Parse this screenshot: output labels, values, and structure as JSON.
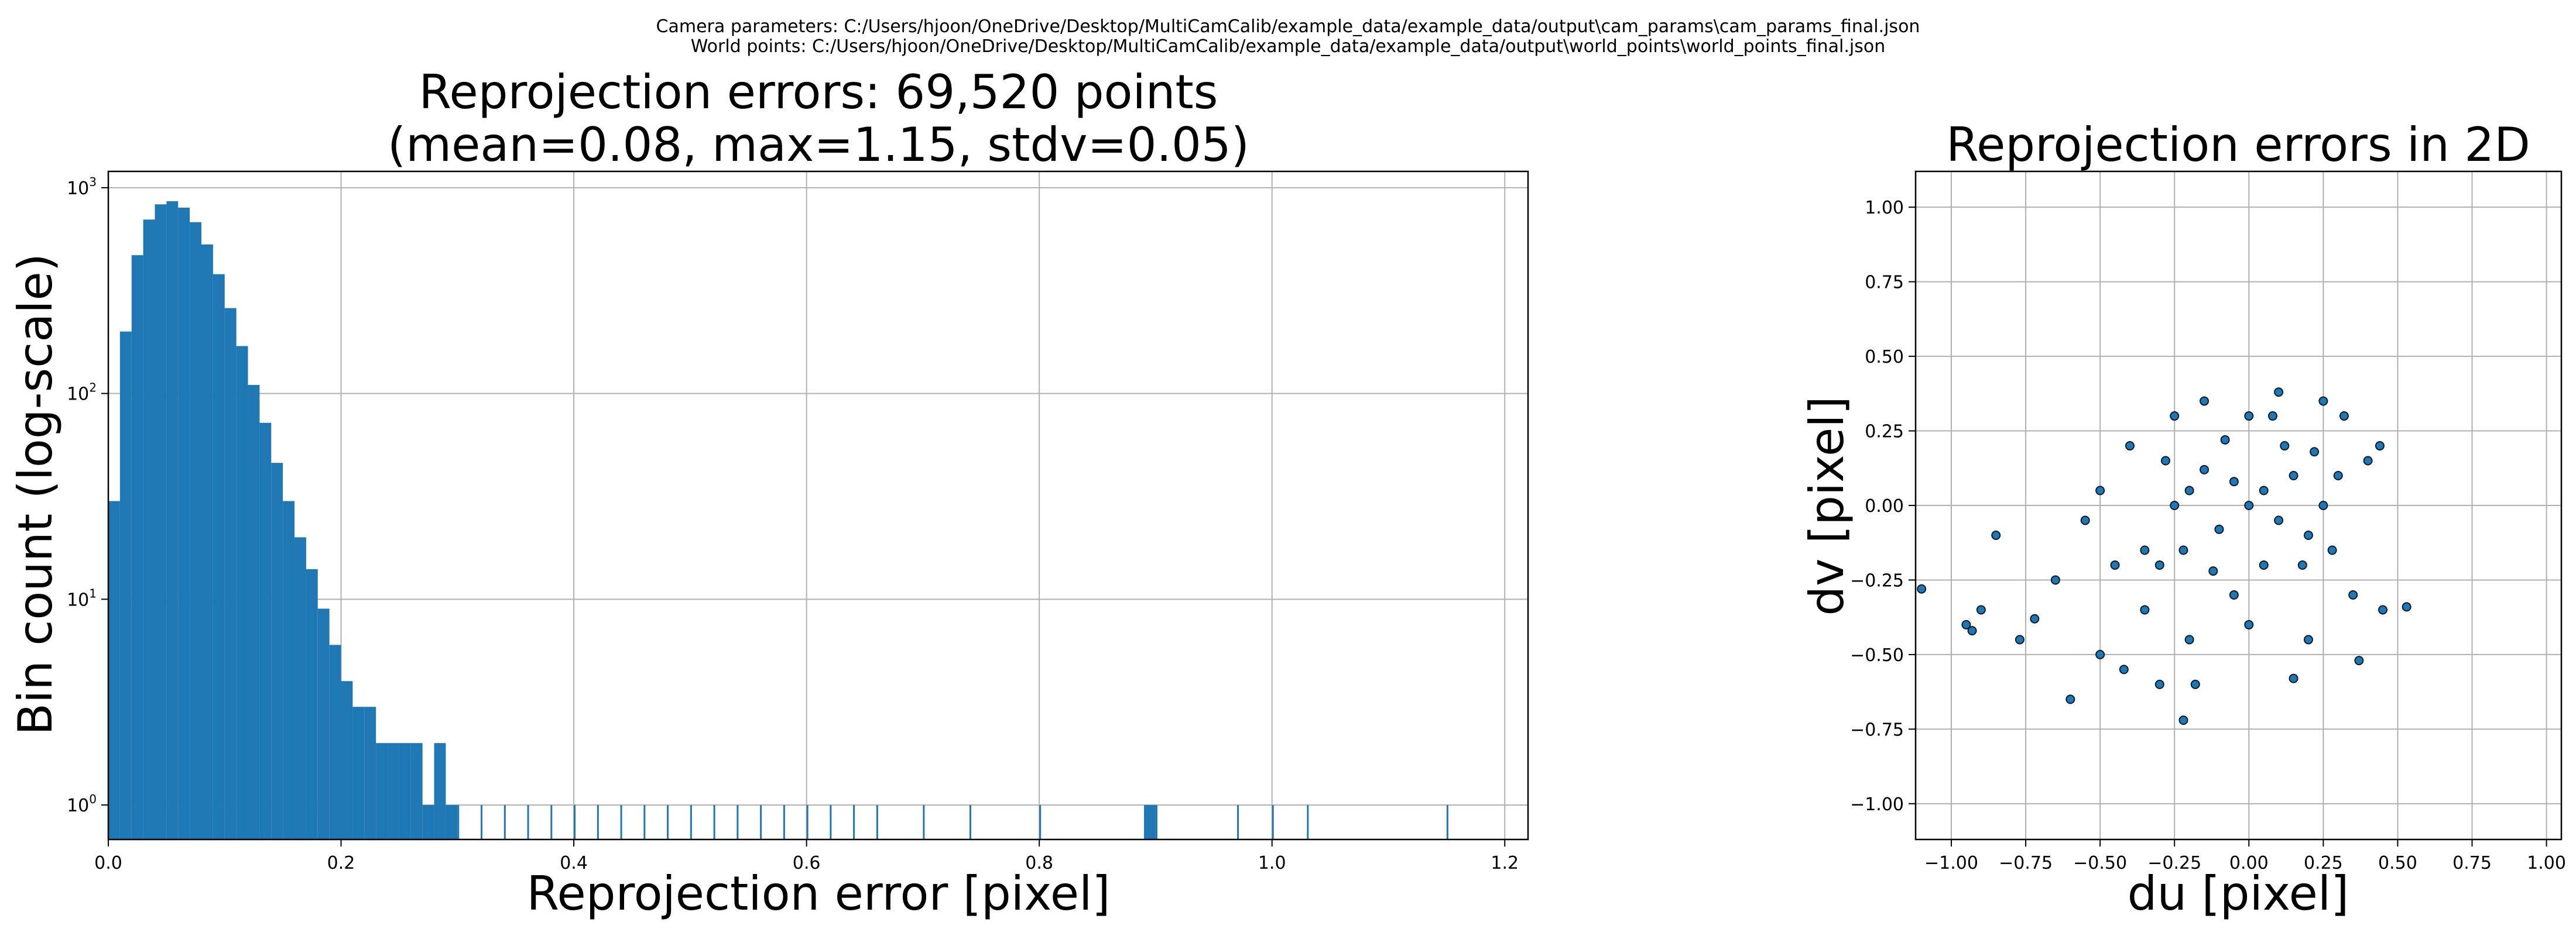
{
  "header": {
    "camera_params": "Camera parameters: C:/Users/hjoon/OneDrive/Desktop/MultiCamCalib/example_data/example_data/output\\cam_params\\cam_params_final.json",
    "world_points": "World points: C:/Users/hjoon/OneDrive/Desktop/MultiCamCalib/example_data/example_data/output\\world_points\\world_points_final.json"
  },
  "colors": {
    "bar": "#1f77b4",
    "scatter_fill": "#1f77b4",
    "scatter_edge": "#0a1a2a",
    "grid": "#b0b0b0"
  },
  "chart_data": [
    {
      "type": "bar",
      "title": "Reprojection errors: 69,520 points",
      "subtitle": "(mean=0.08, max=1.15, stdv=0.05)",
      "xlabel": "Reprojection error [pixel]",
      "ylabel": "Bin count (log-scale)",
      "yscale": "log",
      "xlim": [
        0.0,
        1.22
      ],
      "ylim": [
        0.68,
        1200
      ],
      "xticks": [
        "0.0",
        "0.2",
        "0.4",
        "0.6",
        "0.8",
        "1.0",
        "1.2"
      ],
      "yticks": [
        {
          "value": 1,
          "base": "10",
          "exp": "0"
        },
        {
          "value": 10,
          "base": "10",
          "exp": "1"
        },
        {
          "value": 100,
          "base": "10",
          "exp": "2"
        },
        {
          "value": 1000,
          "base": "10",
          "exp": "3"
        }
      ],
      "grid": true,
      "bins": {
        "x": [
          0.0,
          0.01,
          0.02,
          0.03,
          0.04,
          0.05,
          0.06,
          0.07,
          0.08,
          0.09,
          0.1,
          0.11,
          0.12,
          0.13,
          0.14,
          0.15,
          0.16,
          0.17,
          0.18,
          0.19,
          0.2,
          0.21,
          0.22,
          0.23,
          0.24,
          0.25,
          0.26,
          0.27,
          0.28,
          0.29,
          0.3,
          0.32,
          0.34,
          0.36,
          0.38,
          0.4,
          0.42,
          0.44,
          0.46,
          0.48,
          0.5,
          0.52,
          0.54,
          0.56,
          0.58,
          0.6,
          0.62,
          0.64,
          0.66,
          0.7,
          0.74,
          0.8,
          0.89,
          0.9,
          0.97,
          1.0,
          1.03,
          1.15
        ],
        "counts": [
          30,
          200,
          470,
          700,
          830,
          860,
          800,
          680,
          530,
          380,
          260,
          170,
          110,
          72,
          46,
          30,
          20,
          14,
          9,
          6,
          4,
          3,
          3,
          2,
          2,
          2,
          2,
          1,
          2,
          1,
          1,
          1,
          1,
          1,
          1,
          1,
          1,
          1,
          1,
          1,
          1,
          1,
          1,
          1,
          1,
          1,
          1,
          1,
          1,
          1,
          1,
          1,
          1,
          1,
          1,
          1,
          1,
          1
        ]
      }
    },
    {
      "type": "scatter",
      "title": "Reprojection errors in 2D",
      "xlabel": "du [pixel]",
      "ylabel": "dv [pixel]",
      "xlim": [
        -1.12,
        1.05
      ],
      "ylim": [
        -1.12,
        1.12
      ],
      "xticks": [
        "−1.00",
        "−0.75",
        "−0.50",
        "−0.25",
        "0.00",
        "0.25",
        "0.50",
        "0.75",
        "1.00"
      ],
      "yticks": [
        "−1.00",
        "−0.75",
        "−0.50",
        "−0.25",
        "0.00",
        "0.25",
        "0.50",
        "0.75",
        "1.00"
      ],
      "grid": true,
      "points": [
        [
          0.0,
          0.0
        ],
        [
          0.05,
          0.05
        ],
        [
          -0.05,
          0.08
        ],
        [
          0.1,
          -0.05
        ],
        [
          -0.1,
          -0.08
        ],
        [
          0.15,
          0.1
        ],
        [
          -0.15,
          0.12
        ],
        [
          0.2,
          -0.1
        ],
        [
          -0.2,
          0.05
        ],
        [
          0.12,
          0.2
        ],
        [
          -0.08,
          0.22
        ],
        [
          0.05,
          -0.2
        ],
        [
          -0.12,
          -0.22
        ],
        [
          0.22,
          0.18
        ],
        [
          -0.22,
          -0.15
        ],
        [
          0.18,
          -0.2
        ],
        [
          0.08,
          0.3
        ],
        [
          -0.05,
          -0.3
        ],
        [
          0.25,
          0.0
        ],
        [
          -0.25,
          0.0
        ],
        [
          0.3,
          0.1
        ],
        [
          -0.28,
          0.15
        ],
        [
          0.28,
          -0.15
        ],
        [
          -0.3,
          -0.2
        ],
        [
          0.1,
          0.38
        ],
        [
          -0.15,
          0.35
        ],
        [
          0.25,
          0.35
        ],
        [
          0.0,
          -0.4
        ],
        [
          -0.2,
          -0.45
        ],
        [
          0.2,
          -0.45
        ],
        [
          0.35,
          -0.3
        ],
        [
          -0.35,
          -0.35
        ],
        [
          0.4,
          0.15
        ],
        [
          -0.4,
          0.2
        ],
        [
          0.45,
          -0.35
        ],
        [
          0.44,
          0.2
        ],
        [
          -0.45,
          -0.2
        ],
        [
          -0.5,
          0.05
        ],
        [
          -0.55,
          -0.05
        ],
        [
          0.53,
          -0.34
        ],
        [
          -0.65,
          -0.25
        ],
        [
          -0.72,
          -0.38
        ],
        [
          -0.77,
          -0.45
        ],
        [
          -0.85,
          -0.1
        ],
        [
          -0.9,
          -0.35
        ],
        [
          -0.95,
          -0.4
        ],
        [
          -0.93,
          -0.42
        ],
        [
          -1.1,
          -0.28
        ],
        [
          -0.6,
          -0.65
        ],
        [
          -0.5,
          -0.5
        ],
        [
          -0.42,
          -0.55
        ],
        [
          -0.3,
          -0.6
        ],
        [
          -0.22,
          -0.72
        ],
        [
          -0.18,
          -0.6
        ],
        [
          0.15,
          -0.58
        ],
        [
          0.37,
          -0.52
        ],
        [
          -0.35,
          -0.15
        ],
        [
          0.32,
          0.3
        ],
        [
          -0.25,
          0.3
        ],
        [
          0.0,
          0.3
        ]
      ]
    }
  ]
}
